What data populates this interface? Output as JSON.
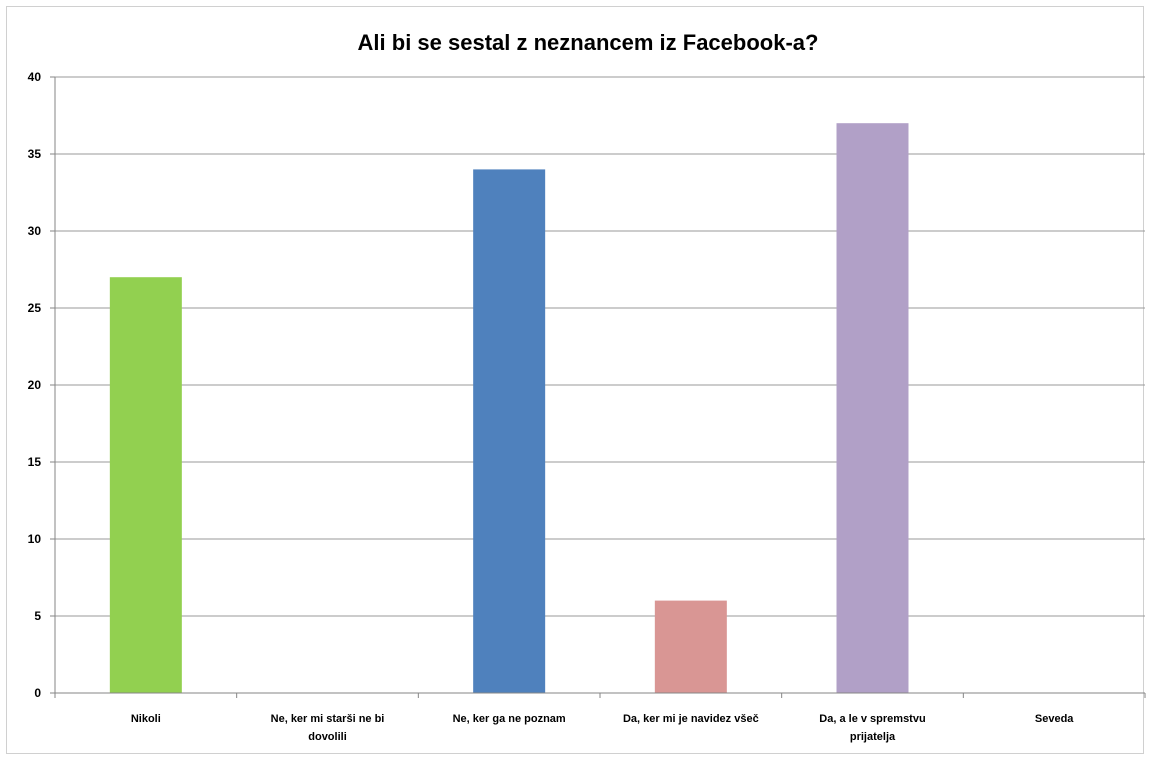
{
  "chart_data": {
    "type": "bar",
    "title": "Ali bi se sestal z neznancem iz Facebook-a?",
    "xlabel": "",
    "ylabel": "",
    "ylim": [
      0,
      40
    ],
    "yticks": [
      "0",
      "5",
      "10",
      "15",
      "20",
      "25",
      "30",
      "35",
      "40"
    ],
    "grid": true,
    "legend": "none",
    "categories": [
      "Nikoli",
      "Ne, ker mi starši ne bi dovolili",
      "Ne, ker ga ne poznam",
      "Da, ker mi je navidez všeč",
      "Da, a le v spremstvu prijatelja",
      "Seveda"
    ],
    "category_lines": [
      [
        "Nikoli"
      ],
      [
        "Ne, ker mi starši ne bi",
        "dovolili"
      ],
      [
        "Ne, ker ga ne poznam"
      ],
      [
        "Da, ker mi je navidez všeč"
      ],
      [
        "Da, a le v spremstvu",
        "prijatelja"
      ],
      [
        "Seveda"
      ]
    ],
    "values": [
      27,
      0,
      34,
      6,
      37,
      0
    ],
    "colors": [
      "#92d050",
      "#c0504d",
      "#4f81bd",
      "#d99694",
      "#b1a0c7",
      "#f79646"
    ]
  }
}
